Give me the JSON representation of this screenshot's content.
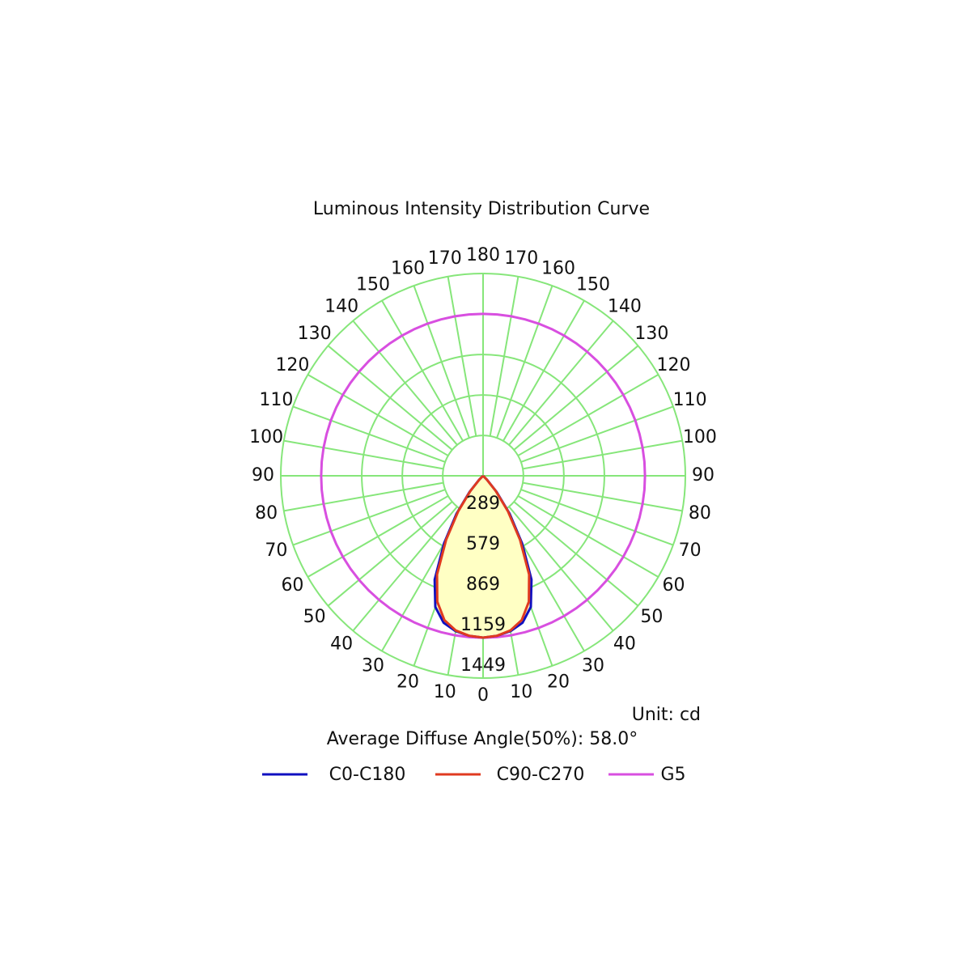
{
  "chart_data": {
    "type": "polar",
    "title": "Luminous Intensity Distribution Curve",
    "unit_note": "Unit: cd",
    "annotation": "Average Diffuse Angle(50%): 58.0°",
    "angles": [
      0,
      5,
      10,
      15,
      20,
      25,
      30,
      35,
      40,
      45,
      50,
      55,
      60,
      65,
      70,
      75,
      80,
      85,
      90,
      95,
      100,
      105,
      110,
      115,
      120,
      125,
      130,
      135,
      140,
      145,
      150,
      155,
      160,
      165,
      170,
      175,
      180
    ],
    "rlim": [
      0,
      1449
    ],
    "rticks": [
      289,
      579,
      869,
      1159,
      1449
    ],
    "angle_ticks": [
      0,
      10,
      20,
      30,
      40,
      50,
      60,
      70,
      80,
      90,
      100,
      110,
      120,
      130,
      140,
      150,
      160,
      170,
      180
    ],
    "grid_color": "#86e67a",
    "fill_color": "#ffffc4",
    "series": [
      {
        "name": "C0-C180",
        "color": "#1010c0",
        "values": [
          1159,
          1150,
          1130,
          1090,
          1000,
          820,
          560,
          330,
          150,
          40,
          0,
          0,
          0,
          0,
          0,
          0,
          0,
          0,
          0,
          0,
          0,
          0,
          0,
          0,
          0,
          0,
          0,
          0,
          0,
          0,
          0,
          0,
          0,
          0,
          0,
          0,
          0
        ]
      },
      {
        "name": "C90-C270",
        "color": "#e03a20",
        "values": [
          1159,
          1150,
          1125,
          1070,
          960,
          780,
          530,
          310,
          140,
          35,
          0,
          0,
          0,
          0,
          0,
          0,
          0,
          0,
          0,
          0,
          0,
          0,
          0,
          0,
          0,
          0,
          0,
          0,
          0,
          0,
          0,
          0,
          0,
          0,
          0,
          0,
          0
        ]
      },
      {
        "name": "G5",
        "color": "#d84fe0",
        "values": [
          1160,
          1160,
          1160,
          1160,
          1160,
          1160,
          1160,
          1160,
          1160,
          1160,
          1160,
          1160,
          1160,
          1160,
          1160,
          1160,
          1160,
          1160,
          1160,
          1160,
          1160,
          1160,
          1160,
          1160,
          1160,
          1160,
          1160,
          1160,
          1160,
          1160,
          1160,
          1160,
          1160,
          1160,
          1160,
          1160,
          1160
        ]
      }
    ]
  }
}
